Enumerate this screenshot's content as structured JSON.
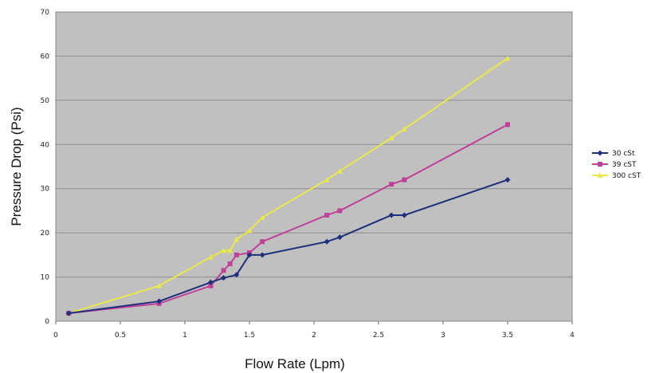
{
  "chart_data": {
    "type": "line",
    "title": "",
    "xlabel": "Flow Rate (Lpm)",
    "ylabel": "Pressure Drop (Psi)",
    "xlim": [
      0,
      4
    ],
    "ylim": [
      0,
      70
    ],
    "xticks": [
      0,
      0.5,
      1,
      1.5,
      2,
      2.5,
      3,
      3.5,
      4
    ],
    "yticks": [
      0,
      10,
      20,
      30,
      40,
      50,
      60,
      70
    ],
    "grid": true,
    "plot_background": "#c0c0c0",
    "legend_position": "right",
    "series": [
      {
        "name": "30 cSt",
        "color": "#1f2f7a",
        "marker": "diamond",
        "x": [
          0.1,
          0.8,
          1.2,
          1.3,
          1.4,
          1.5,
          1.6,
          2.1,
          2.2,
          2.6,
          2.7,
          3.5
        ],
        "y": [
          1.8,
          4.5,
          8.8,
          9.8,
          10.5,
          15,
          15,
          18,
          19,
          24,
          24,
          32
        ]
      },
      {
        "name": "39 cST",
        "color": "#c0409a",
        "marker": "square",
        "x": [
          0.1,
          0.8,
          1.2,
          1.3,
          1.35,
          1.4,
          1.5,
          1.6,
          2.1,
          2.2,
          2.6,
          2.7,
          3.5
        ],
        "y": [
          1.8,
          4,
          8,
          11.5,
          13,
          15,
          15.5,
          18,
          24,
          25,
          31,
          32,
          44.5
        ]
      },
      {
        "name": "300 cST",
        "color": "#e8e84a",
        "marker": "triangle",
        "x": [
          0.1,
          0.8,
          1.2,
          1.3,
          1.35,
          1.4,
          1.5,
          1.6,
          2.1,
          2.2,
          2.6,
          2.7,
          3.5
        ],
        "y": [
          1.8,
          8,
          14.5,
          16,
          16,
          18.5,
          20.5,
          23.5,
          32,
          34,
          41.5,
          43.5,
          59.5
        ]
      }
    ]
  }
}
